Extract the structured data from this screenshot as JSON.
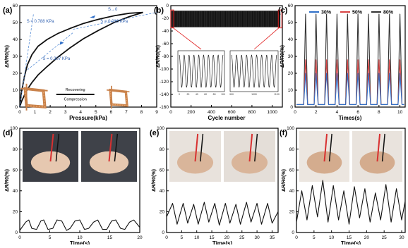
{
  "chart_data": [
    {
      "panel": "(a)",
      "type": "line",
      "xlabel": "Pressure(kPa)",
      "ylabel": "ΔR/R0(%)",
      "xlim": [
        0,
        9
      ],
      "ylim": [
        0,
        60
      ],
      "xticks": [
        0,
        1,
        2,
        3,
        4,
        5,
        6,
        7,
        8,
        9
      ],
      "yticks": [
        0,
        10,
        20,
        30,
        40,
        50,
        60
      ],
      "series": [
        {
          "x": [
            0,
            0.1,
            0.3,
            0.5,
            0.8,
            1.2,
            1.8,
            2.5,
            3.3,
            4.2,
            5.2,
            6.2,
            7.2,
            8.1
          ],
          "y": [
            0,
            8,
            18,
            25,
            31,
            36,
            40,
            43.5,
            46.5,
            49.5,
            52,
            54,
            55.5,
            56
          ]
        },
        {
          "x": [
            8.1,
            7.2,
            6.2,
            5.2,
            4.2,
            3.3,
            2.5,
            1.8,
            1.2,
            0.8,
            0.5,
            0.3,
            0.1,
            0
          ],
          "y": [
            56,
            53.5,
            50,
            45.5,
            40.5,
            35,
            29.5,
            24,
            19,
            14.5,
            10.5,
            7,
            3,
            0
          ]
        }
      ],
      "annotations": [
        "S = 0.788 KPa",
        "S→0",
        "S = 0.016 KPa",
        "S = 0.307 KPa",
        "Recovering",
        "Compression"
      ]
    },
    {
      "panel": "(b)",
      "type": "line",
      "xlabel": "Cycle number",
      "ylabel": "ΔR/R0(%)",
      "xlim": [
        0,
        1100
      ],
      "ylim": [
        -160,
        0
      ],
      "xticks": [
        0,
        200,
        400,
        600,
        800,
        1000
      ],
      "yticks": [
        0,
        -20,
        -40,
        -60,
        -80,
        -100,
        -120,
        -140,
        -160
      ],
      "signal_min": -140,
      "signal_max": -8,
      "insets": [
        {
          "xticks": [
            "0",
            "20",
            "40",
            "60",
            "80",
            "100"
          ],
          "peaks": 9
        },
        {
          "xticks": [
            "900",
            "1000",
            "1100"
          ],
          "peaks": 9
        }
      ]
    },
    {
      "panel": "(c)",
      "type": "line",
      "xlabel": "Times(s)",
      "ylabel": "ΔR/R0(%)",
      "xlim": [
        0,
        10.5
      ],
      "ylim": [
        0,
        60
      ],
      "xticks": [
        0,
        2,
        4,
        6,
        8,
        10
      ],
      "yticks": [
        0,
        10,
        20,
        30,
        40,
        50,
        60
      ],
      "legend": "top",
      "series": [
        {
          "name": "30%",
          "color": "#2f6fc8",
          "peak_times": [
            1,
            2,
            3,
            4,
            5,
            6,
            7,
            8,
            9,
            10
          ],
          "peak": 20
        },
        {
          "name": "50%",
          "color": "#d94444",
          "peak_times": [
            1,
            2,
            3,
            4,
            5,
            6,
            7,
            8,
            9,
            10
          ],
          "peak": 28
        },
        {
          "name": "80%",
          "color": "#333333",
          "peak_times": [
            1,
            2,
            3,
            4,
            5,
            6,
            7,
            8,
            9,
            10
          ],
          "peak": 55
        }
      ]
    },
    {
      "panel": "(d)",
      "type": "line",
      "xlabel": "Time(s)",
      "ylabel": "ΔR/R0(%)",
      "xlim": [
        0,
        20
      ],
      "ylim": [
        0,
        100
      ],
      "xticks": [
        0,
        5,
        10,
        15,
        20
      ],
      "yticks": [
        0,
        20,
        40,
        60,
        80,
        100
      ],
      "series": [
        {
          "x": [
            0,
            1,
            1.5,
            2,
            2.8,
            3.5,
            4,
            4.7,
            5.5,
            6.2,
            7,
            7.8,
            8.4,
            9.2,
            10,
            10.8,
            11.5,
            12.3,
            13,
            13.8,
            14.5,
            15.3,
            16,
            16.8,
            17.5,
            18.3,
            19,
            20
          ],
          "y": [
            2,
            10,
            12,
            4,
            3,
            11,
            12,
            3,
            4,
            12,
            11,
            2,
            4,
            11,
            12,
            3,
            4,
            10,
            12,
            3,
            3,
            11,
            12,
            4,
            3,
            10,
            12,
            5
          ]
        }
      ]
    },
    {
      "panel": "(e)",
      "type": "line",
      "xlabel": "Time(s)",
      "ylabel": "ΔR/R0(%)",
      "xlim": [
        0,
        37
      ],
      "ylim": [
        0,
        100
      ],
      "xticks": [
        0,
        5,
        10,
        15,
        20,
        25,
        30,
        35
      ],
      "yticks": [
        0,
        20,
        40,
        60,
        80,
        100
      ],
      "series": [
        {
          "x": [
            0,
            2,
            3.5,
            5.5,
            7,
            9,
            10.5,
            12.5,
            14,
            16,
            17.5,
            19.5,
            21,
            23,
            24.5,
            26.5,
            28,
            30,
            31.5,
            33.5,
            35,
            37
          ],
          "y": [
            15,
            28,
            8,
            28,
            9,
            27,
            8,
            29,
            10,
            28,
            7,
            28,
            9,
            27,
            8,
            29,
            10,
            28,
            8,
            28,
            9,
            20
          ]
        }
      ]
    },
    {
      "panel": "(f)",
      "type": "line",
      "xlabel": "Time(s)",
      "ylabel": "ΔR/R0(%)",
      "xlim": [
        0,
        31
      ],
      "ylim": [
        0,
        100
      ],
      "xticks": [
        0,
        5,
        10,
        15,
        20,
        25,
        30
      ],
      "yticks": [
        0,
        20,
        40,
        60,
        80,
        100
      ],
      "series": [
        {
          "x": [
            0,
            1.5,
            3,
            4.5,
            6,
            7.5,
            9,
            10.5,
            12,
            13.5,
            15,
            16.5,
            18,
            19.5,
            21,
            22.5,
            24,
            25.5,
            27,
            28.5,
            30,
            31
          ],
          "y": [
            10,
            40,
            12,
            45,
            15,
            50,
            10,
            45,
            12,
            40,
            8,
            44,
            14,
            42,
            10,
            38,
            12,
            46,
            10,
            42,
            12,
            30
          ]
        }
      ]
    }
  ]
}
